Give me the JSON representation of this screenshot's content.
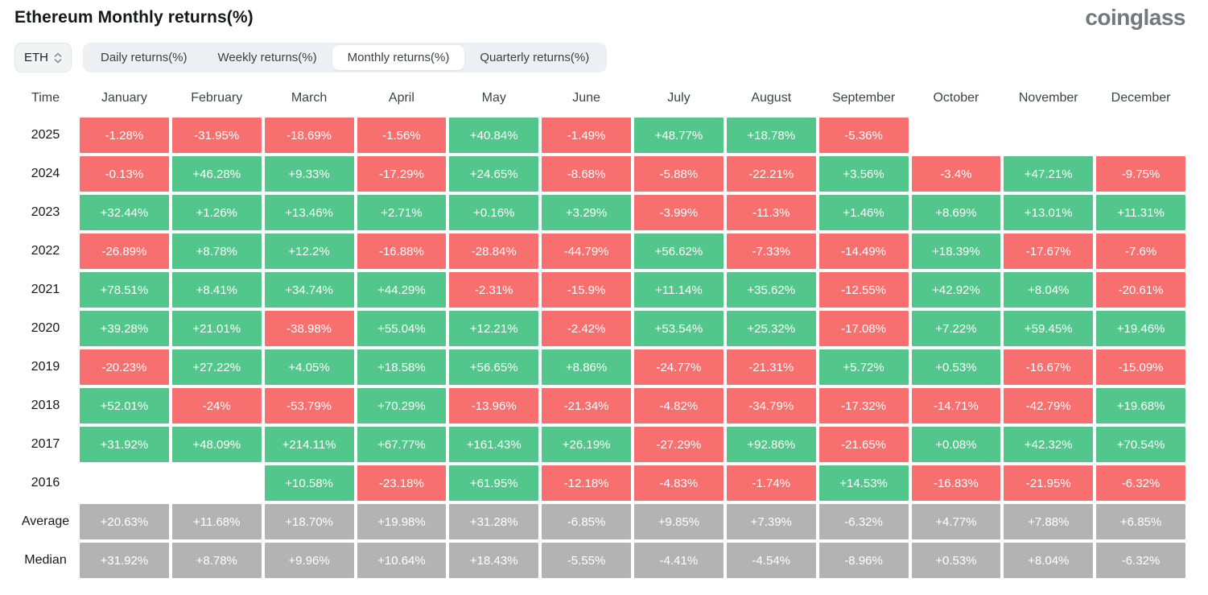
{
  "header": {
    "title": "Ethereum Monthly returns(%)",
    "logo": "coinglass"
  },
  "toolbar": {
    "symbol_select": {
      "value": "ETH",
      "icon": "sort-updown-icon"
    },
    "tabs": [
      {
        "label": "Daily returns(%)",
        "active": false
      },
      {
        "label": "Weekly returns(%)",
        "active": false
      },
      {
        "label": "Monthly returns(%)",
        "active": true
      },
      {
        "label": "Quarterly returns(%)",
        "active": false
      }
    ]
  },
  "colors": {
    "positive": "#53c68c",
    "negative": "#f7706f",
    "neutral": "#b3b3b3"
  },
  "chart_data": {
    "type": "heatmap",
    "title": "Ethereum Monthly returns(%)",
    "row_header": "Time",
    "columns": [
      "January",
      "February",
      "March",
      "April",
      "May",
      "June",
      "July",
      "August",
      "September",
      "October",
      "November",
      "December"
    ],
    "rows": [
      {
        "label": "2025",
        "neutral": false,
        "values": [
          "-1.28%",
          "-31.95%",
          "-18.69%",
          "-1.56%",
          "+40.84%",
          "-1.49%",
          "+48.77%",
          "+18.78%",
          "-5.36%",
          "",
          "",
          ""
        ]
      },
      {
        "label": "2024",
        "neutral": false,
        "values": [
          "-0.13%",
          "+46.28%",
          "+9.33%",
          "-17.29%",
          "+24.65%",
          "-8.68%",
          "-5.88%",
          "-22.21%",
          "+3.56%",
          "-3.4%",
          "+47.21%",
          "-9.75%"
        ]
      },
      {
        "label": "2023",
        "neutral": false,
        "values": [
          "+32.44%",
          "+1.26%",
          "+13.46%",
          "+2.71%",
          "+0.16%",
          "+3.29%",
          "-3.99%",
          "-11.3%",
          "+1.46%",
          "+8.69%",
          "+13.01%",
          "+11.31%"
        ]
      },
      {
        "label": "2022",
        "neutral": false,
        "values": [
          "-26.89%",
          "+8.78%",
          "+12.2%",
          "-16.88%",
          "-28.84%",
          "-44.79%",
          "+56.62%",
          "-7.33%",
          "-14.49%",
          "+18.39%",
          "-17.67%",
          "-7.6%"
        ]
      },
      {
        "label": "2021",
        "neutral": false,
        "values": [
          "+78.51%",
          "+8.41%",
          "+34.74%",
          "+44.29%",
          "-2.31%",
          "-15.9%",
          "+11.14%",
          "+35.62%",
          "-12.55%",
          "+42.92%",
          "+8.04%",
          "-20.61%"
        ]
      },
      {
        "label": "2020",
        "neutral": false,
        "values": [
          "+39.28%",
          "+21.01%",
          "-38.98%",
          "+55.04%",
          "+12.21%",
          "-2.42%",
          "+53.54%",
          "+25.32%",
          "-17.08%",
          "+7.22%",
          "+59.45%",
          "+19.46%"
        ]
      },
      {
        "label": "2019",
        "neutral": false,
        "values": [
          "-20.23%",
          "+27.22%",
          "+4.05%",
          "+18.58%",
          "+56.65%",
          "+8.86%",
          "-24.77%",
          "-21.31%",
          "+5.72%",
          "+0.53%",
          "-16.67%",
          "-15.09%"
        ]
      },
      {
        "label": "2018",
        "neutral": false,
        "values": [
          "+52.01%",
          "-24%",
          "-53.79%",
          "+70.29%",
          "-13.96%",
          "-21.34%",
          "-4.82%",
          "-34.79%",
          "-17.32%",
          "-14.71%",
          "-42.79%",
          "+19.68%"
        ]
      },
      {
        "label": "2017",
        "neutral": false,
        "values": [
          "+31.92%",
          "+48.09%",
          "+214.11%",
          "+67.77%",
          "+161.43%",
          "+26.19%",
          "-27.29%",
          "+92.86%",
          "-21.65%",
          "+0.08%",
          "+42.32%",
          "+70.54%"
        ]
      },
      {
        "label": "2016",
        "neutral": false,
        "values": [
          "",
          "",
          "+10.58%",
          "-23.18%",
          "+61.95%",
          "-12.18%",
          "-4.83%",
          "-1.74%",
          "+14.53%",
          "-16.83%",
          "-21.95%",
          "-6.32%"
        ]
      },
      {
        "label": "Average",
        "neutral": true,
        "values": [
          "+20.63%",
          "+11.68%",
          "+18.70%",
          "+19.98%",
          "+31.28%",
          "-6.85%",
          "+9.85%",
          "+7.39%",
          "-6.32%",
          "+4.77%",
          "+7.88%",
          "+6.85%"
        ]
      },
      {
        "label": "Median",
        "neutral": true,
        "values": [
          "+31.92%",
          "+8.78%",
          "+9.96%",
          "+10.64%",
          "+18.43%",
          "-5.55%",
          "-4.41%",
          "-4.54%",
          "-8.96%",
          "+0.53%",
          "+8.04%",
          "-6.32%"
        ]
      }
    ]
  }
}
